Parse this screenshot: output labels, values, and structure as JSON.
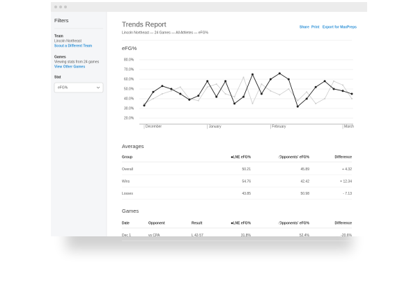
{
  "sidebar": {
    "title": "Filters",
    "team_label": "Team",
    "team": "Lincoln Northeast",
    "team_link": "Scout a Different Team",
    "games_label": "Games",
    "games_text": "Viewing stats from 24 games",
    "games_link": "View Other Games",
    "stat_label": "Stat",
    "stat_value": "eFG%"
  },
  "header": {
    "title": "Trends Report",
    "subtitle": "Lincoln Northeast — 24 Games — All Athletes — eFG%",
    "links": [
      "Share",
      "Print",
      "Export for MaxPreps"
    ]
  },
  "chart_data": {
    "type": "line",
    "title": "eFG%",
    "categories": [
      "December",
      null,
      null,
      null,
      null,
      null,
      null,
      "January",
      null,
      null,
      null,
      null,
      null,
      null,
      "February",
      null,
      null,
      null,
      null,
      null,
      null,
      null,
      "March",
      null
    ],
    "series": [
      {
        "color": "#222222",
        "values": [
          33,
          47,
          53,
          50,
          45,
          39,
          43,
          58,
          42,
          58,
          35,
          42,
          65,
          45,
          60,
          66,
          60,
          32,
          40,
          52,
          58,
          50,
          48,
          45
        ]
      },
      {
        "color": "#cccccc",
        "values": [
          35,
          40,
          45,
          48,
          52,
          40,
          38,
          52,
          55,
          45,
          42,
          62,
          35,
          55,
          48,
          44,
          50,
          38,
          47,
          35,
          40,
          58,
          54,
          40
        ]
      }
    ],
    "ylim": [
      14,
      82
    ],
    "yticks": [
      {
        "value": 20,
        "label": "20.0%"
      },
      {
        "value": 30,
        "label": "30.0%"
      },
      {
        "value": 40,
        "label": "40.0%"
      },
      {
        "value": 50,
        "label": "50.0%"
      },
      {
        "value": 60,
        "label": "60.0%"
      },
      {
        "value": 70,
        "label": "70.0%"
      },
      {
        "value": 80,
        "label": "80.0%"
      }
    ],
    "grid": true
  },
  "averages": {
    "title": "Averages",
    "columns": [
      "Group",
      "LNE eFG%",
      "Opponents' eFG%",
      "Difference"
    ],
    "rows": [
      [
        "Overall",
        "50.21",
        "45.89",
        "+ 4.32"
      ],
      [
        "Wins",
        "54.76",
        "42.42",
        "+ 12.34"
      ],
      [
        "Losses",
        "43.85",
        "50.98",
        "- 7.13"
      ]
    ]
  },
  "games": {
    "title": "Games",
    "columns": [
      "Date",
      "Opponent",
      "Result",
      "LNE eFG%",
      "Opponents' eFG%",
      "Difference"
    ],
    "rows": [
      [
        "Dec 1",
        "vs CPA",
        "L 42-57",
        "31.8%",
        "52.4%",
        "-20.6%"
      ]
    ]
  }
}
